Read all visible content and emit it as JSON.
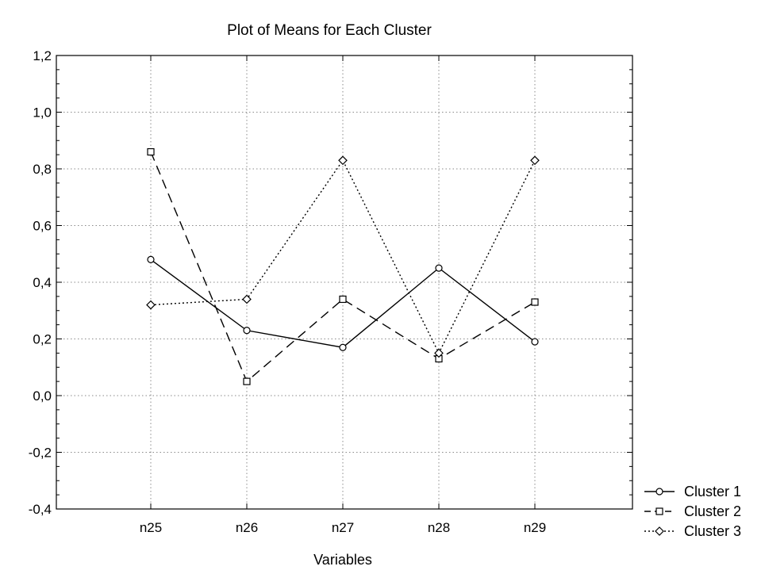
{
  "chart_data": {
    "type": "line",
    "title": "Plot of Means for Each Cluster",
    "xlabel": "Variables",
    "ylabel": "",
    "categories": [
      "n25",
      "n26",
      "n27",
      "n28",
      "n29"
    ],
    "ylim": [
      -0.4,
      1.2
    ],
    "yticks": [
      -0.4,
      -0.2,
      0.0,
      0.2,
      0.4,
      0.6,
      0.8,
      1.0,
      1.2
    ],
    "ytick_labels": [
      "-0,4",
      "-0,2",
      "0,0",
      "0,2",
      "0,4",
      "0,6",
      "0,8",
      "1,0",
      "1,2"
    ],
    "grid": true,
    "legend_position": "bottom-right",
    "series": [
      {
        "name": "Cluster  1",
        "values": [
          0.48,
          0.23,
          0.17,
          0.45,
          0.19
        ],
        "line_style": "solid",
        "marker": "circle"
      },
      {
        "name": "Cluster  2",
        "values": [
          0.86,
          0.05,
          0.34,
          0.13,
          0.33
        ],
        "line_style": "dashed",
        "marker": "square"
      },
      {
        "name": "Cluster  3",
        "values": [
          0.32,
          0.34,
          0.83,
          0.15,
          0.83
        ],
        "line_style": "dotted",
        "marker": "diamond"
      }
    ]
  }
}
